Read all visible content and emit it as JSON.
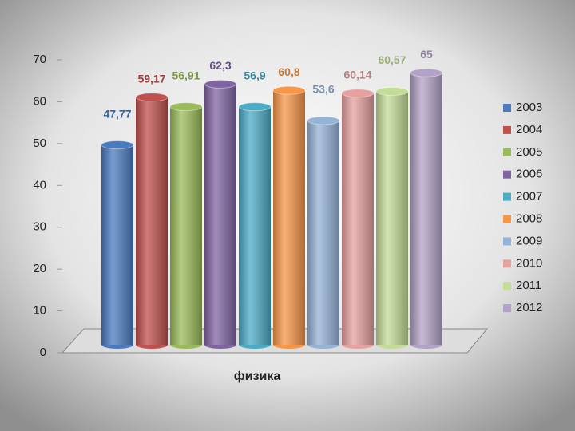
{
  "chart_data": {
    "type": "bar3d",
    "categories": [
      "физика"
    ],
    "series": [
      {
        "name": "2003",
        "color": "#4a7bbf",
        "values": [
          47.77
        ],
        "value_labels": [
          "47,77"
        ]
      },
      {
        "name": "2004",
        "color": "#c0504d",
        "values": [
          59.17
        ],
        "value_labels": [
          "59,17"
        ]
      },
      {
        "name": "2005",
        "color": "#9bbb59",
        "values": [
          56.91
        ],
        "value_labels": [
          "56,91"
        ]
      },
      {
        "name": "2006",
        "color": "#8064a2",
        "values": [
          62.3
        ],
        "value_labels": [
          "62,3"
        ]
      },
      {
        "name": "2007",
        "color": "#4bacc6",
        "values": [
          56.9
        ],
        "value_labels": [
          "56,9"
        ]
      },
      {
        "name": "2008",
        "color": "#f79646",
        "values": [
          60.8
        ],
        "value_labels": [
          "60,8"
        ]
      },
      {
        "name": "2009",
        "color": "#95b3d7",
        "values": [
          53.6
        ],
        "value_labels": [
          "53,6"
        ]
      },
      {
        "name": "2010",
        "color": "#e6a0a0",
        "values": [
          60.14
        ],
        "value_labels": [
          "60,14"
        ]
      },
      {
        "name": "2011",
        "color": "#c3dc96",
        "values": [
          60.57
        ],
        "value_labels": [
          "60,57"
        ]
      },
      {
        "name": "2012",
        "color": "#b3a2c7",
        "values": [
          65
        ],
        "value_labels": [
          "65"
        ]
      }
    ],
    "ylim": [
      0,
      70
    ],
    "yticks": [
      0,
      10,
      20,
      30,
      40,
      50,
      60,
      70
    ],
    "legend": "right"
  }
}
